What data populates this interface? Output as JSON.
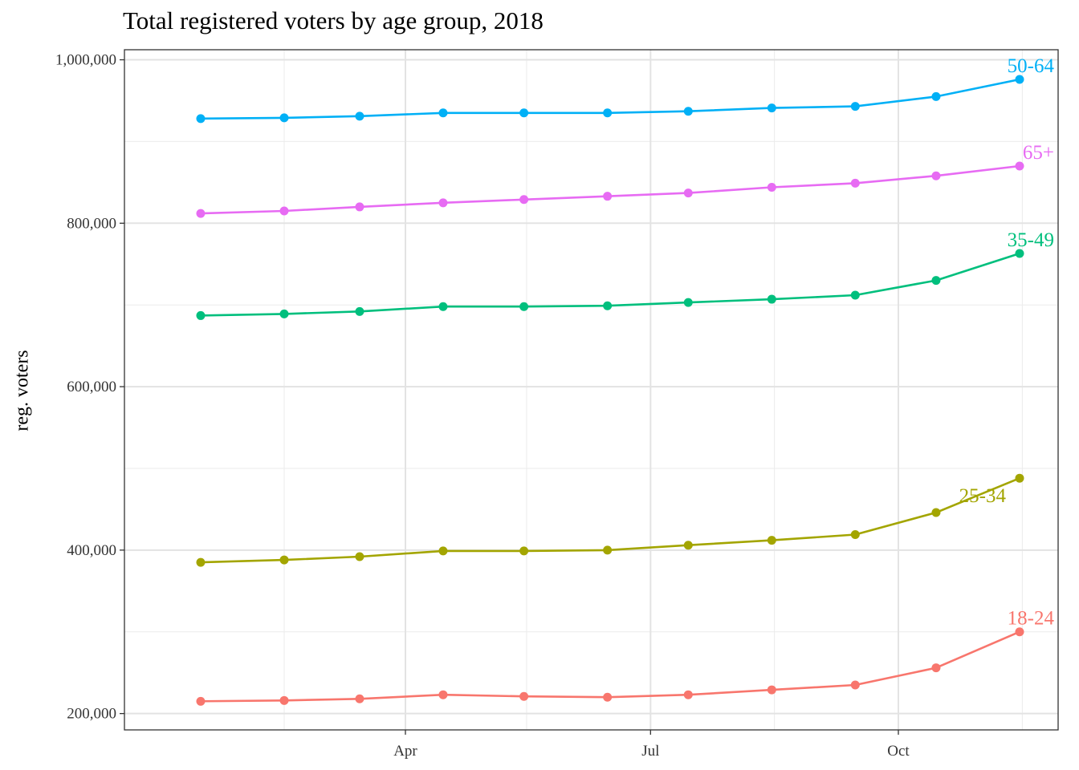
{
  "chart_data": {
    "type": "line",
    "title": "Total registered voters by age group, 2018",
    "xlabel": "",
    "ylabel": "reg. voters",
    "x": [
      "2018-01-15",
      "2018-02-15",
      "2018-03-15",
      "2018-04-15",
      "2018-05-15",
      "2018-06-15",
      "2018-07-15",
      "2018-08-15",
      "2018-09-15",
      "2018-10-15",
      "2018-11-15"
    ],
    "xlim": [
      "2018-01-01",
      "2018-11-15"
    ],
    "x_ticks": [
      {
        "date": "2018-04-01",
        "label": "Apr"
      },
      {
        "date": "2018-07-01",
        "label": "Jul"
      },
      {
        "date": "2018-10-01",
        "label": "Oct"
      }
    ],
    "x_minor_ticks": [
      "2018-02-15",
      "2018-05-16",
      "2018-08-16",
      "2018-11-16"
    ],
    "ylim": [
      180000,
      1000000
    ],
    "y_ticks": [
      {
        "value": 200000,
        "label": "200,000"
      },
      {
        "value": 400000,
        "label": "400,000"
      },
      {
        "value": 600000,
        "label": "600,000"
      },
      {
        "value": 800000,
        "label": "800,000"
      },
      {
        "value": 1000000,
        "label": "1,000,000"
      }
    ],
    "y_minor_ticks": [
      300000,
      500000,
      700000,
      900000
    ],
    "grid": true,
    "legend": "direct labels at line ends",
    "series": [
      {
        "name": "18-24",
        "color": "#F8766D",
        "values": [
          215000,
          216000,
          218000,
          223000,
          221000,
          220000,
          223000,
          229000,
          235000,
          256000,
          300000
        ]
      },
      {
        "name": "25-34",
        "color": "#A3A500",
        "values": [
          385000,
          388000,
          392000,
          399000,
          399000,
          400000,
          406000,
          412000,
          419000,
          446000,
          488000
        ]
      },
      {
        "name": "35-49",
        "color": "#00BF7D",
        "values": [
          687000,
          689000,
          692000,
          698000,
          698000,
          699000,
          703000,
          707000,
          712000,
          730000,
          763000
        ]
      },
      {
        "name": "50-64",
        "color": "#00B0F6",
        "values": [
          928000,
          929000,
          931000,
          935000,
          935000,
          935000,
          937000,
          941000,
          943000,
          955000,
          976000
        ]
      },
      {
        "name": "65+",
        "color": "#E76BF3",
        "values": [
          812000,
          815000,
          820000,
          825000,
          829000,
          833000,
          837000,
          844000,
          849000,
          858000,
          870000
        ]
      }
    ]
  }
}
